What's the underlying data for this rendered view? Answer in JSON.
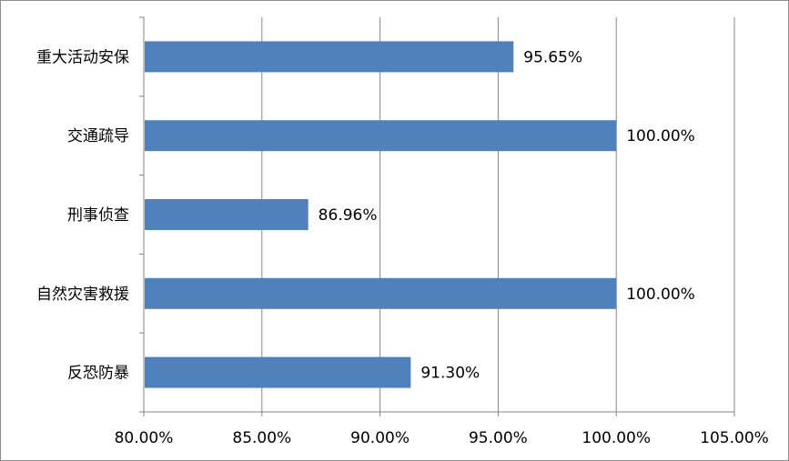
{
  "chart_data": {
    "type": "bar",
    "orientation": "horizontal",
    "title": "",
    "xlabel": "",
    "ylabel": "",
    "categories": [
      "重大活动安保",
      "交通疏导",
      "刑事侦查",
      "自然灾害救援",
      "反恐防暴"
    ],
    "values": [
      95.65,
      100.0,
      86.96,
      100.0,
      91.3
    ],
    "value_labels": [
      "95.65%",
      "100.00%",
      "86.96%",
      "100.00%",
      "91.30%"
    ],
    "xlim": [
      80,
      105
    ],
    "xticks": [
      80,
      85,
      90,
      95,
      100,
      105
    ],
    "xtick_labels": [
      "80.00%",
      "85.00%",
      "90.00%",
      "95.00%",
      "100.00%",
      "105.00%"
    ],
    "grid": "vertical",
    "legend": "none",
    "bar_color": "#4F81BD"
  }
}
